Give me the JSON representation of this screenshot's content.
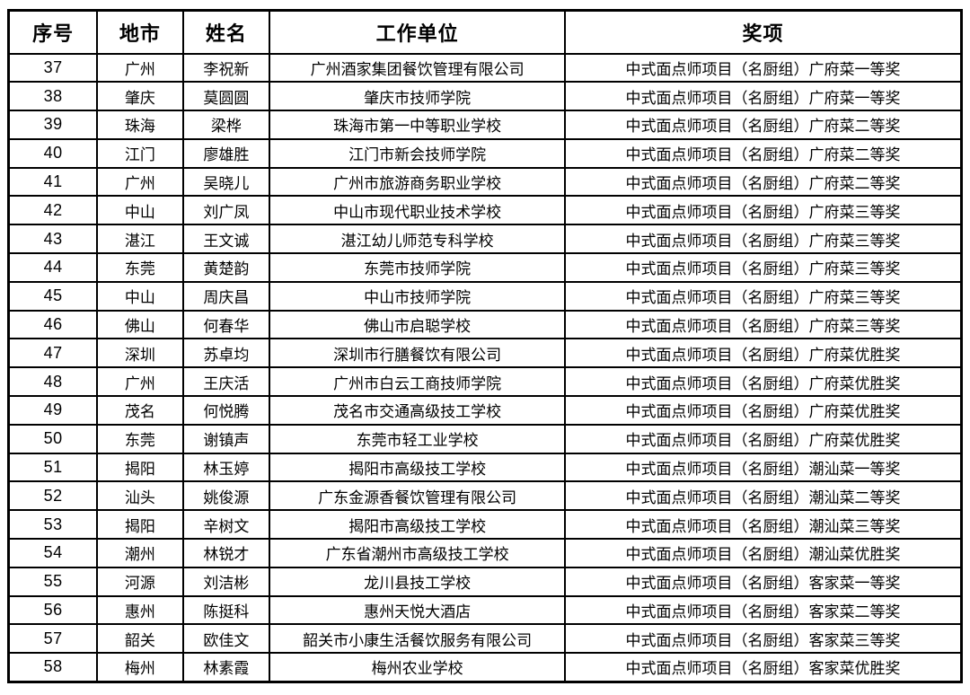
{
  "table": {
    "colors": {
      "border": "#000000",
      "background": "#ffffff",
      "text": "#000000"
    },
    "columns": [
      {
        "key": "index",
        "label": "序号"
      },
      {
        "key": "city",
        "label": "地市"
      },
      {
        "key": "name",
        "label": "姓名"
      },
      {
        "key": "organization",
        "label": "工作单位"
      },
      {
        "key": "award",
        "label": "奖项"
      }
    ],
    "rows": [
      [
        "37",
        "广州",
        "李祝新",
        "广州酒家集团餐饮管理有限公司",
        "中式面点师项目（名厨组）广府菜一等奖"
      ],
      [
        "38",
        "肇庆",
        "莫圆圆",
        "肇庆市技师学院",
        "中式面点师项目（名厨组）广府菜一等奖"
      ],
      [
        "39",
        "珠海",
        "梁桦",
        "珠海市第一中等职业学校",
        "中式面点师项目（名厨组）广府菜二等奖"
      ],
      [
        "40",
        "江门",
        "廖雄胜",
        "江门市新会技师学院",
        "中式面点师项目（名厨组）广府菜二等奖"
      ],
      [
        "41",
        "广州",
        "吴晓儿",
        "广州市旅游商务职业学校",
        "中式面点师项目（名厨组）广府菜二等奖"
      ],
      [
        "42",
        "中山",
        "刘广凤",
        "中山市现代职业技术学校",
        "中式面点师项目（名厨组）广府菜三等奖"
      ],
      [
        "43",
        "湛江",
        "王文诚",
        "湛江幼儿师范专科学校",
        "中式面点师项目（名厨组）广府菜三等奖"
      ],
      [
        "44",
        "东莞",
        "黄楚韵",
        "东莞市技师学院",
        "中式面点师项目（名厨组）广府菜三等奖"
      ],
      [
        "45",
        "中山",
        "周庆昌",
        "中山市技师学院",
        "中式面点师项目（名厨组）广府菜三等奖"
      ],
      [
        "46",
        "佛山",
        "何春华",
        "佛山市启聪学校",
        "中式面点师项目（名厨组）广府菜三等奖"
      ],
      [
        "47",
        "深圳",
        "苏卓均",
        "深圳市行膳餐饮有限公司",
        "中式面点师项目（名厨组）广府菜优胜奖"
      ],
      [
        "48",
        "广州",
        "王庆活",
        "广州市白云工商技师学院",
        "中式面点师项目（名厨组）广府菜优胜奖"
      ],
      [
        "49",
        "茂名",
        "何悦腾",
        "茂名市交通高级技工学校",
        "中式面点师项目（名厨组）广府菜优胜奖"
      ],
      [
        "50",
        "东莞",
        "谢镇声",
        "东莞市轻工业学校",
        "中式面点师项目（名厨组）广府菜优胜奖"
      ],
      [
        "51",
        "揭阳",
        "林玉婷",
        "揭阳市高级技工学校",
        "中式面点师项目（名厨组）潮汕菜一等奖"
      ],
      [
        "52",
        "汕头",
        "姚俊源",
        "广东金源香餐饮管理有限公司",
        "中式面点师项目（名厨组）潮汕菜二等奖"
      ],
      [
        "53",
        "揭阳",
        "辛树文",
        "揭阳市高级技工学校",
        "中式面点师项目（名厨组）潮汕菜三等奖"
      ],
      [
        "54",
        "潮州",
        "林锐才",
        "广东省潮州市高级技工学校",
        "中式面点师项目（名厨组）潮汕菜优胜奖"
      ],
      [
        "55",
        "河源",
        "刘洁彬",
        "龙川县技工学校",
        "中式面点师项目（名厨组）客家菜一等奖"
      ],
      [
        "56",
        "惠州",
        "陈挺科",
        "惠州天悦大酒店",
        "中式面点师项目（名厨组）客家菜二等奖"
      ],
      [
        "57",
        "韶关",
        "欧佳文",
        "韶关市小康生活餐饮服务有限公司",
        "中式面点师项目（名厨组）客家菜三等奖"
      ],
      [
        "58",
        "梅州",
        "林素霞",
        "梅州农业学校",
        "中式面点师项目（名厨组）客家菜优胜奖"
      ]
    ]
  }
}
